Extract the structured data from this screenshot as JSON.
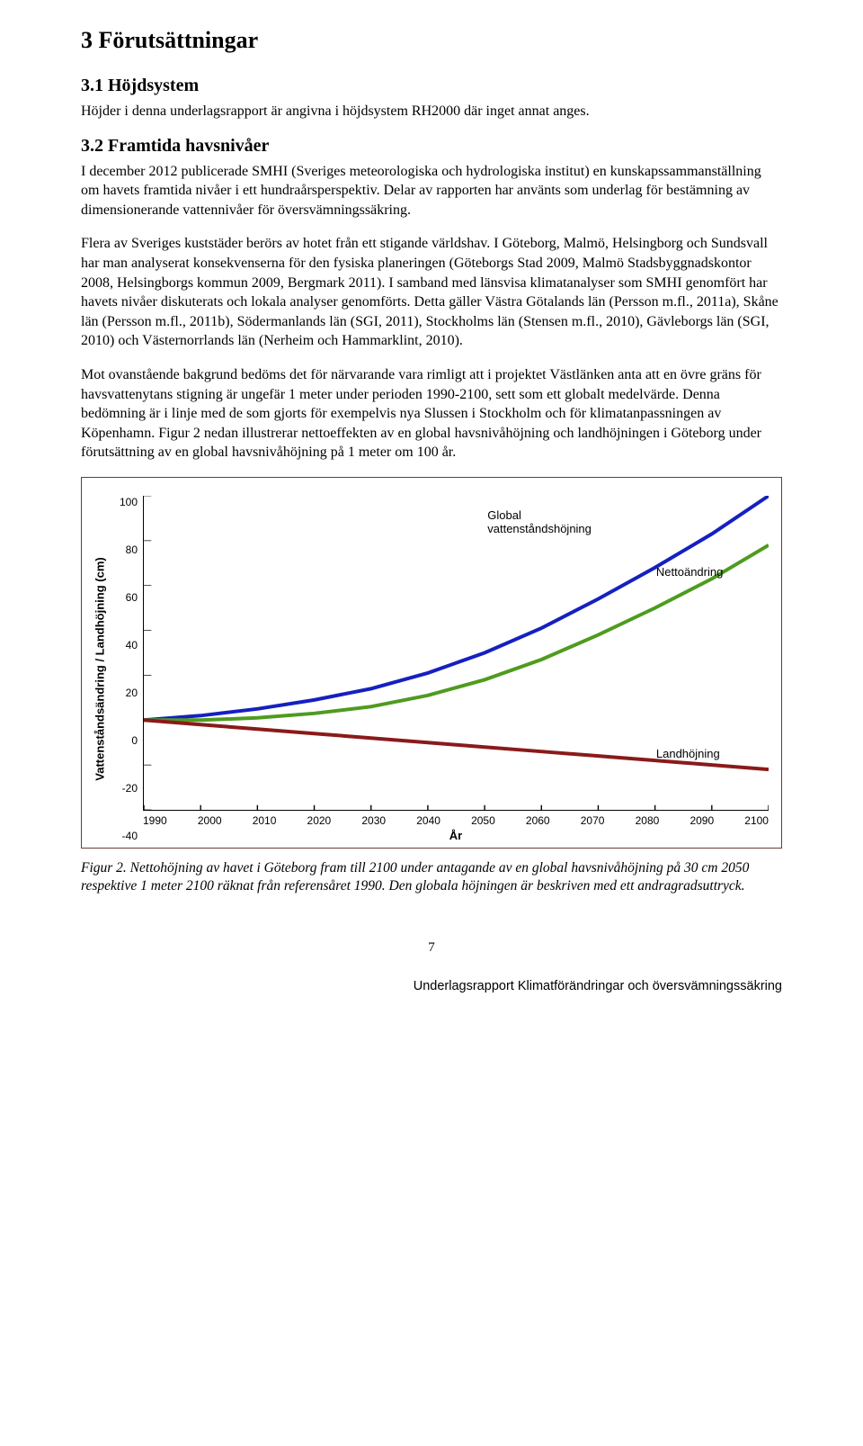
{
  "heading1": "3  Förutsättningar",
  "section1": {
    "heading": "3.1   Höjdsystem",
    "p1": "Höjder i denna underlagsrapport är angivna i höjdsystem RH2000 där inget annat anges."
  },
  "section2": {
    "heading": "3.2   Framtida havsnivåer",
    "p1": "I december 2012 publicerade SMHI (Sveriges meteorologiska och hydrologiska institut) en kunskapssammanställning om havets framtida nivåer i ett hundraårsperspektiv. Delar av rapporten har använts som underlag för bestämning av dimensionerande vattennivåer för översvämningssäkring.",
    "p2": "Flera av Sveriges kuststäder berörs av hotet från ett stigande världshav. I Göteborg, Malmö, Helsingborg och Sundsvall har man analyserat konsekvenserna för den fysiska planeringen (Göteborgs Stad 2009, Malmö Stadsbyggnadskontor 2008, Helsingborgs kommun 2009, Bergmark 2011). I samband med länsvisa klimatanalyser som SMHI genomfört har havets nivåer diskuterats och lokala analyser genomförts. Detta gäller Västra Götalands län (Persson m.fl., 2011a), Skåne län (Persson m.fl., 2011b), Södermanlands län (SGI, 2011), Stockholms län (Stensen m.fl., 2010), Gävleborgs län (SGI, 2010) och Västernorrlands län (Nerheim och Hammarklint, 2010).",
    "p3": "Mot ovanstående bakgrund bedöms det för närvarande vara rimligt att i projektet Västlänken anta att en övre gräns för havsvattenytans stigning är ungefär 1 meter under perioden 1990-2100, sett som ett globalt medelvärde. Denna bedömning är i linje med de som gjorts för exempelvis nya Slussen i Stockholm och för klimatanpassningen av Köpenhamn. Figur 2 nedan illustrerar nettoeffekten av en global havsnivåhöjning och landhöjningen i Göteborg under förutsättning av en global havsnivåhöjning på 1 meter om 100 år."
  },
  "chart": {
    "type": "line",
    "xlabel": "År",
    "ylabel": "Vattenståndsändring / Landhöjning (cm)",
    "xmin": 1990,
    "xmax": 2100,
    "ymin": -40,
    "ymax": 100,
    "xticks": [
      "1990",
      "2000",
      "2010",
      "2020",
      "2030",
      "2040",
      "2050",
      "2060",
      "2070",
      "2080",
      "2090",
      "2100"
    ],
    "yticks": [
      "100",
      "80",
      "60",
      "40",
      "20",
      "0",
      "-20",
      "-40"
    ],
    "grid_color": "#000000",
    "background_color": "#ffffff",
    "series": {
      "global": {
        "label": "Global\nvattenståndshöjning",
        "color": "#1520c0",
        "width": 2,
        "points": [
          [
            1990,
            0
          ],
          [
            2000,
            2
          ],
          [
            2010,
            5
          ],
          [
            2020,
            9
          ],
          [
            2030,
            14
          ],
          [
            2040,
            21
          ],
          [
            2050,
            30
          ],
          [
            2060,
            41
          ],
          [
            2070,
            54
          ],
          [
            2080,
            68
          ],
          [
            2090,
            83
          ],
          [
            2100,
            100
          ]
        ]
      },
      "netto": {
        "label": "Nettoändring",
        "color": "#4f9b1f",
        "width": 2,
        "points": [
          [
            1990,
            0
          ],
          [
            2000,
            0
          ],
          [
            2010,
            1
          ],
          [
            2020,
            3
          ],
          [
            2030,
            6
          ],
          [
            2040,
            11
          ],
          [
            2050,
            18
          ],
          [
            2060,
            27
          ],
          [
            2070,
            38
          ],
          [
            2080,
            50
          ],
          [
            2090,
            63
          ],
          [
            2100,
            78
          ]
        ]
      },
      "land": {
        "label": "Landhöjning",
        "color": "#8a1a1a",
        "width": 2,
        "points": [
          [
            1990,
            0
          ],
          [
            2000,
            -2
          ],
          [
            2010,
            -4
          ],
          [
            2020,
            -6
          ],
          [
            2030,
            -8
          ],
          [
            2040,
            -10
          ],
          [
            2050,
            -12
          ],
          [
            2060,
            -14
          ],
          [
            2070,
            -16
          ],
          [
            2080,
            -18
          ],
          [
            2090,
            -20
          ],
          [
            2100,
            -22
          ]
        ]
      }
    },
    "label_positions": {
      "global": {
        "left_pct": 55,
        "top_pct": 4
      },
      "netto": {
        "left_pct": 82,
        "top_pct": 22
      },
      "land": {
        "left_pct": 82,
        "top_pct": 80
      }
    }
  },
  "caption": "Figur 2. Nettohöjning av havet i Göteborg fram till 2100 under antagande av en global havsnivåhöjning på 30 cm 2050 respektive 1 meter 2100 räknat från referensåret 1990. Den globala höjningen är beskriven med ett andragradsuttryck.",
  "page_number": "7",
  "footer": "Underlagsrapport Klimatförändringar och översvämningssäkring"
}
